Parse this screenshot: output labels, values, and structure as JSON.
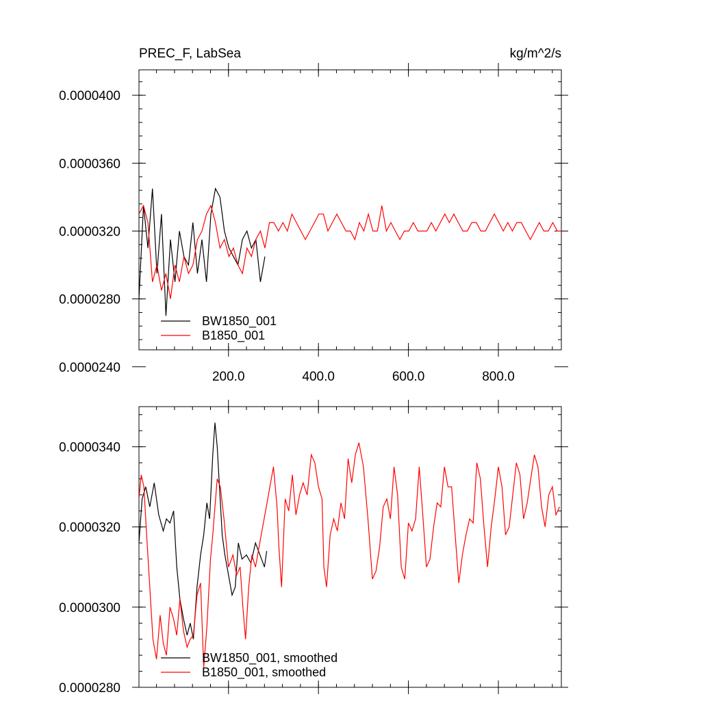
{
  "colors": {
    "bw": "#000000",
    "b": "#ff0000"
  },
  "chart_data": [
    {
      "type": "line",
      "title": "PREC_F, LabSea",
      "units": "kg/m^2/s",
      "xlim": [
        1,
        940
      ],
      "ylim": [
        2.5e-05,
        4.15e-05
      ],
      "x_ticks": [
        200,
        400,
        600,
        800
      ],
      "x_tick_labels": [
        "200.0",
        "400.0",
        "600.0",
        "800.0"
      ],
      "y_ticks": [
        2.4e-05,
        2.8e-05,
        3.2e-05,
        3.6e-05,
        4e-05
      ],
      "y_tick_labels": [
        "0.0000240",
        "0.0000280",
        "0.0000320",
        "0.0000360",
        "0.0000400"
      ],
      "legend_position": "bottom-left",
      "series": [
        {
          "name": "BW1850_001",
          "color": "#000000",
          "x_start": 1,
          "x_step": 10,
          "values": [
            2.8e-05,
            3.35e-05,
            3.1e-05,
            3.45e-05,
            2.95e-05,
            3.3e-05,
            2.7e-05,
            3.15e-05,
            2.9e-05,
            3.2e-05,
            3.05e-05,
            3e-05,
            3.25e-05,
            2.95e-05,
            3.15e-05,
            2.9e-05,
            3.3e-05,
            3.45e-05,
            3.4e-05,
            3.2e-05,
            3.1e-05,
            3.05e-05,
            3e-05,
            3.15e-05,
            3.2e-05,
            3.1e-05,
            3.15e-05,
            2.9e-05,
            3.05e-05
          ]
        },
        {
          "name": "B1850_001",
          "color": "#ff0000",
          "x_start": 1,
          "x_step": 10,
          "values": [
            3.3e-05,
            3.35e-05,
            3.25e-05,
            2.9e-05,
            3e-05,
            2.85e-05,
            2.95e-05,
            2.8e-05,
            3e-05,
            2.9e-05,
            3.05e-05,
            2.95e-05,
            3e-05,
            3.15e-05,
            3.2e-05,
            3.3e-05,
            3.35e-05,
            3.25e-05,
            3.1e-05,
            3.15e-05,
            3.05e-05,
            3.1e-05,
            3e-05,
            2.95e-05,
            3.1e-05,
            3.05e-05,
            3.15e-05,
            3.2e-05,
            3.1e-05,
            3.25e-05,
            3.25e-05,
            3.2e-05,
            3.25e-05,
            3.2e-05,
            3.3e-05,
            3.25e-05,
            3.2e-05,
            3.15e-05,
            3.2e-05,
            3.25e-05,
            3.3e-05,
            3.3e-05,
            3.2e-05,
            3.25e-05,
            3.3e-05,
            3.25e-05,
            3.2e-05,
            3.2e-05,
            3.15e-05,
            3.25e-05,
            3.2e-05,
            3.3e-05,
            3.2e-05,
            3.2e-05,
            3.35e-05,
            3.2e-05,
            3.25e-05,
            3.2e-05,
            3.15e-05,
            3.2e-05,
            3.2e-05,
            3.25e-05,
            3.2e-05,
            3.2e-05,
            3.2e-05,
            3.25e-05,
            3.2e-05,
            3.25e-05,
            3.3e-05,
            3.25e-05,
            3.3e-05,
            3.25e-05,
            3.2e-05,
            3.2e-05,
            3.25e-05,
            3.25e-05,
            3.2e-05,
            3.2e-05,
            3.25e-05,
            3.3e-05,
            3.25e-05,
            3.2e-05,
            3.25e-05,
            3.2e-05,
            3.25e-05,
            3.25e-05,
            3.2e-05,
            3.15e-05,
            3.2e-05,
            3.25e-05,
            3.2e-05,
            3.2e-05,
            3.25e-05,
            3.2e-05,
            3.2e-05
          ]
        }
      ]
    },
    {
      "type": "line",
      "xlim": [
        1,
        940
      ],
      "ylim": [
        2.8e-05,
        3.5e-05
      ],
      "x_ticks": [
        200,
        400,
        600,
        800
      ],
      "y_ticks": [
        2.8e-05,
        3e-05,
        3.2e-05,
        3.4e-05
      ],
      "y_tick_labels": [
        "0.0000280",
        "0.0000300",
        "0.0000320",
        "0.0000340"
      ],
      "legend_position": "bottom-left",
      "series": [
        {
          "name": "BW1850_001, smoothed",
          "color": "#000000",
          "x": [
            1,
            8,
            16,
            25,
            35,
            45,
            55,
            62,
            70,
            78,
            85,
            92,
            100,
            108,
            115,
            122,
            130,
            138,
            145,
            152,
            158,
            165,
            170,
            175,
            180,
            186,
            192,
            200,
            208,
            215,
            222,
            230,
            240,
            250,
            260,
            270,
            280,
            285
          ],
          "values": [
            3.16e-05,
            3.27e-05,
            3.3e-05,
            3.25e-05,
            3.31e-05,
            3.23e-05,
            3.19e-05,
            3.22e-05,
            3.21e-05,
            3.24e-05,
            3.1e-05,
            3.02e-05,
            2.97e-05,
            2.93e-05,
            2.96e-05,
            2.92e-05,
            3.05e-05,
            3.13e-05,
            3.18e-05,
            3.26e-05,
            3.22e-05,
            3.38e-05,
            3.46e-05,
            3.4e-05,
            3.3e-05,
            3.18e-05,
            3.13e-05,
            3.08e-05,
            3.03e-05,
            3.05e-05,
            3.16e-05,
            3.12e-05,
            3.13e-05,
            3.11e-05,
            3.16e-05,
            3.13e-05,
            3.1e-05,
            3.14e-05
          ]
        },
        {
          "name": "B1850_001, smoothed",
          "color": "#ff0000",
          "x": [
            1,
            6,
            12,
            18,
            25,
            32,
            40,
            48,
            55,
            62,
            70,
            78,
            85,
            92,
            100,
            108,
            115,
            122,
            130,
            138,
            145,
            152,
            160,
            165,
            170,
            175,
            182,
            190,
            200,
            210,
            218,
            226,
            232,
            238,
            245,
            252,
            260,
            268,
            276,
            284,
            292,
            300,
            308,
            312,
            318,
            326,
            334,
            342,
            350,
            358,
            366,
            375,
            384,
            392,
            400,
            408,
            412,
            418,
            426,
            434,
            442,
            450,
            458,
            466,
            474,
            482,
            490,
            500,
            510,
            520,
            528,
            536,
            544,
            552,
            560,
            568,
            576,
            584,
            592,
            600,
            608,
            616,
            624,
            632,
            640,
            648,
            656,
            664,
            672,
            680,
            688,
            696,
            704,
            712,
            720,
            728,
            736,
            744,
            752,
            760,
            768,
            776,
            784,
            792,
            800,
            808,
            816,
            824,
            832,
            840,
            848,
            856,
            864,
            872,
            880,
            888,
            896,
            904,
            912,
            920,
            928,
            936
          ],
          "values": [
            3.27e-05,
            3.33e-05,
            3.3e-05,
            3.18e-05,
            3.05e-05,
            2.92e-05,
            2.87e-05,
            2.98e-05,
            2.91e-05,
            2.88e-05,
            3e-05,
            2.97e-05,
            2.93e-05,
            3.02e-05,
            2.94e-05,
            2.9e-05,
            2.92e-05,
            2.93e-05,
            3.03e-05,
            3.06e-05,
            2.85e-05,
            2.95e-05,
            3.12e-05,
            3.18e-05,
            3.25e-05,
            3.32e-05,
            3.3e-05,
            3.22e-05,
            3.1e-05,
            3.13e-05,
            3.08e-05,
            3.1e-05,
            3e-05,
            2.92e-05,
            3.05e-05,
            3.13e-05,
            3.1e-05,
            3.15e-05,
            3.2e-05,
            3.25e-05,
            3.3e-05,
            3.35e-05,
            3.25e-05,
            3.15e-05,
            3.05e-05,
            3.27e-05,
            3.24e-05,
            3.33e-05,
            3.23e-05,
            3.28e-05,
            3.31e-05,
            3.28e-05,
            3.38e-05,
            3.36e-05,
            3.3e-05,
            3.27e-05,
            3.1e-05,
            3.05e-05,
            3.18e-05,
            3.22e-05,
            3.19e-05,
            3.26e-05,
            3.22e-05,
            3.37e-05,
            3.31e-05,
            3.38e-05,
            3.41e-05,
            3.35e-05,
            3.22e-05,
            3.07e-05,
            3.09e-05,
            3.15e-05,
            3.25e-05,
            3.27e-05,
            3.22e-05,
            3.35e-05,
            3.28e-05,
            3.1e-05,
            3.07e-05,
            3.21e-05,
            3.19e-05,
            3.22e-05,
            3.35e-05,
            3.23e-05,
            3.1e-05,
            3.12e-05,
            3.2e-05,
            3.26e-05,
            3.25e-05,
            3.35e-05,
            3.3e-05,
            3.3e-05,
            3.18e-05,
            3.06e-05,
            3.13e-05,
            3.18e-05,
            3.22e-05,
            3.21e-05,
            3.36e-05,
            3.32e-05,
            3.2e-05,
            3.1e-05,
            3.2e-05,
            3.27e-05,
            3.35e-05,
            3.3e-05,
            3.18e-05,
            3.2e-05,
            3.28e-05,
            3.36e-05,
            3.33e-05,
            3.22e-05,
            3.26e-05,
            3.32e-05,
            3.38e-05,
            3.35e-05,
            3.25e-05,
            3.2e-05,
            3.28e-05,
            3.3e-05,
            3.23e-05,
            3.25e-05
          ]
        }
      ]
    }
  ]
}
